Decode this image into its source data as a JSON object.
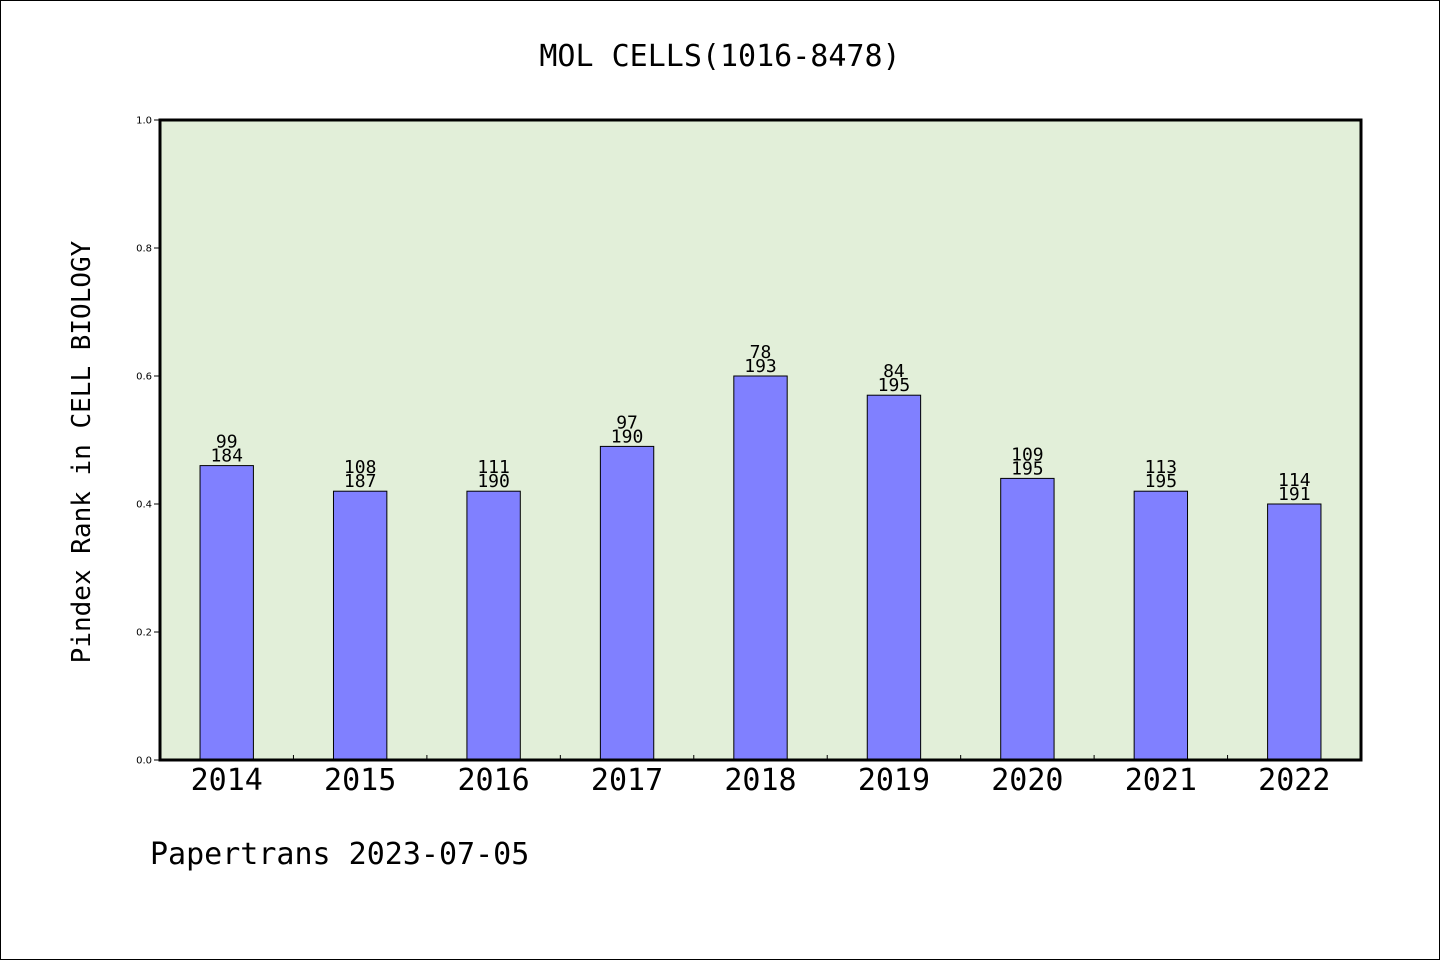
{
  "chart_data": {
    "type": "bar",
    "title": "MOL CELLS(1016-8478)",
    "xlabel": "",
    "ylabel": "Pindex Rank in CELL BIOLOGY",
    "ylim": [
      0,
      1.0
    ],
    "yticks": [
      "0.0",
      "0.2",
      "0.4",
      "0.6",
      "0.8",
      "1.0"
    ],
    "categories": [
      "2014",
      "2015",
      "2016",
      "2017",
      "2018",
      "2019",
      "2020",
      "2021",
      "2022"
    ],
    "values": [
      0.46,
      0.42,
      0.42,
      0.49,
      0.6,
      0.57,
      0.44,
      0.42,
      0.4
    ],
    "rank_labels": [
      "99",
      "108",
      "111",
      "97",
      "78",
      "84",
      "109",
      "113",
      "114"
    ],
    "total_labels": [
      "184",
      "187",
      "190",
      "190",
      "193",
      "195",
      "195",
      "195",
      "191"
    ],
    "grid": false,
    "legend": "none",
    "colors": {
      "bar": "#8080ff",
      "plot_bg": "#e2efd9",
      "axis": "#000000"
    }
  },
  "footer": {
    "text": "Papertrans 2023-07-05"
  }
}
